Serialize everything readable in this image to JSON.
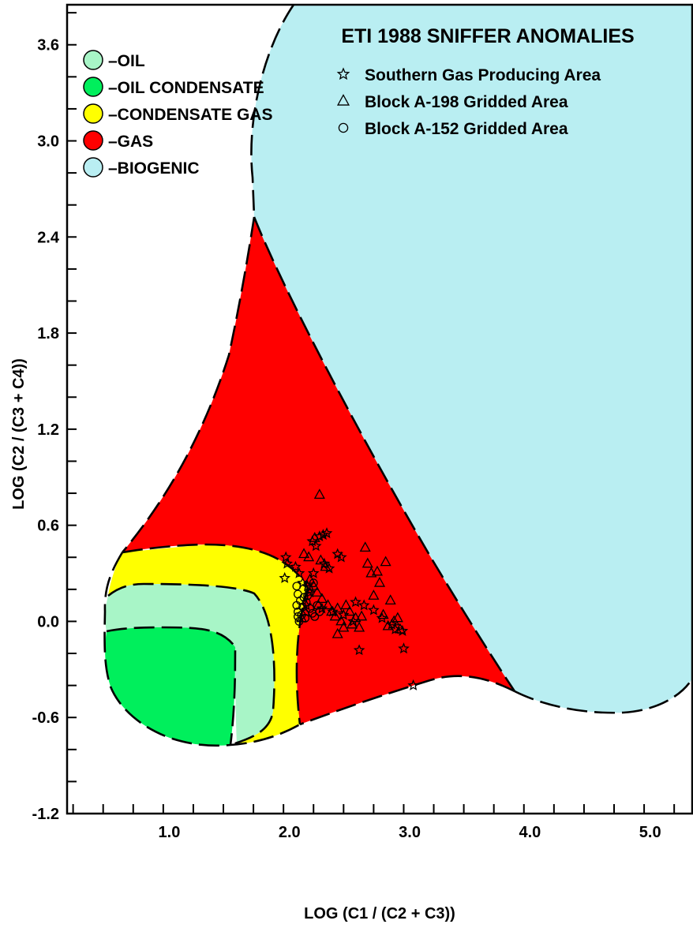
{
  "colors": {
    "oil": "#a8f5c7",
    "oil_condensate": "#00ef5c",
    "condensate_gas": "#ffff00",
    "gas": "#ff0000",
    "biogenic": "#b9eef2"
  },
  "chart_data": {
    "type": "scatter",
    "title": "ETI 1988 SNIFFER ANOMALIES",
    "xlabel": "LOG (C1 / (C2 + C3))",
    "ylabel": "LOG (C2 / (C3 + C4))",
    "xlim": [
      0.15,
      5.35
    ],
    "ylim": [
      -1.2,
      3.85
    ],
    "xticks": [
      "1.0",
      "2.0",
      "3.0",
      "4.0",
      "5.0"
    ],
    "yticks": [
      "-1.2",
      "-0.6",
      "0.0",
      "0.6",
      "1.2",
      "1.8",
      "2.4",
      "3.0",
      "3.6"
    ],
    "grid": false,
    "zones": [
      {
        "key": "oil",
        "label": "OIL"
      },
      {
        "key": "oil_condensate",
        "label": "OIL  CONDENSATE"
      },
      {
        "key": "condensate_gas",
        "label": "CONDENSATE  GAS"
      },
      {
        "key": "gas",
        "label": "GAS"
      },
      {
        "key": "biogenic",
        "label": "BIOGENIC"
      }
    ],
    "series": [
      {
        "name": "Southern Gas Producing Area",
        "marker": "star",
        "points": [
          [
            1.97,
            0.4
          ],
          [
            1.98,
            0.36
          ],
          [
            1.96,
            0.27
          ],
          [
            2.05,
            0.34
          ],
          [
            2.08,
            0.3
          ],
          [
            2.11,
            0.24
          ],
          [
            2.15,
            0.22
          ],
          [
            2.19,
            0.5
          ],
          [
            2.22,
            0.47
          ],
          [
            2.25,
            0.53
          ],
          [
            2.28,
            0.54
          ],
          [
            2.31,
            0.55
          ],
          [
            2.29,
            0.36
          ],
          [
            2.33,
            0.33
          ],
          [
            2.4,
            0.42
          ],
          [
            2.43,
            0.4
          ],
          [
            2.2,
            0.3
          ],
          [
            2.17,
            0.18
          ],
          [
            2.14,
            0.1
          ],
          [
            2.27,
            0.08
          ],
          [
            2.36,
            0.06
          ],
          [
            2.45,
            0.04
          ],
          [
            2.53,
            0.0
          ],
          [
            2.55,
            0.12
          ],
          [
            2.62,
            0.1
          ],
          [
            2.7,
            0.07
          ],
          [
            2.77,
            0.02
          ],
          [
            2.85,
            -0.02
          ],
          [
            2.88,
            -0.05
          ],
          [
            2.94,
            -0.06
          ],
          [
            2.58,
            -0.18
          ],
          [
            2.95,
            -0.17
          ],
          [
            3.03,
            -0.4
          ]
        ]
      },
      {
        "name": "Block A-198 Gridded Area",
        "marker": "triangle",
        "points": [
          [
            2.25,
            0.79
          ],
          [
            2.21,
            0.52
          ],
          [
            2.12,
            0.42
          ],
          [
            2.16,
            0.4
          ],
          [
            2.26,
            0.38
          ],
          [
            2.3,
            0.34
          ],
          [
            2.17,
            0.26
          ],
          [
            2.2,
            0.22
          ],
          [
            2.23,
            0.18
          ],
          [
            2.27,
            0.14
          ],
          [
            2.32,
            0.1
          ],
          [
            2.35,
            0.06
          ],
          [
            2.38,
            0.03
          ],
          [
            2.4,
            0.08
          ],
          [
            2.43,
            0.0
          ],
          [
            2.45,
            -0.04
          ],
          [
            2.47,
            0.1
          ],
          [
            2.5,
            0.06
          ],
          [
            2.52,
            -0.02
          ],
          [
            2.55,
            0.02
          ],
          [
            2.58,
            -0.04
          ],
          [
            2.6,
            0.03
          ],
          [
            2.63,
            0.46
          ],
          [
            2.65,
            0.36
          ],
          [
            2.68,
            0.3
          ],
          [
            2.7,
            0.16
          ],
          [
            2.73,
            0.31
          ],
          [
            2.75,
            0.24
          ],
          [
            2.78,
            0.04
          ],
          [
            2.8,
            0.37
          ],
          [
            2.82,
            -0.03
          ],
          [
            2.84,
            0.13
          ],
          [
            2.87,
            0.0
          ],
          [
            2.9,
            0.02
          ],
          [
            2.92,
            -0.05
          ],
          [
            2.4,
            -0.08
          ],
          [
            2.24,
            0.1
          ],
          [
            2.13,
            0.06
          ],
          [
            2.1,
            0.02
          ]
        ]
      },
      {
        "name": "Block A-152 Gridded Area",
        "marker": "circle",
        "points": [
          [
            2.06,
            0.22
          ],
          [
            2.07,
            0.17
          ],
          [
            2.09,
            0.13
          ],
          [
            2.11,
            0.09
          ],
          [
            2.07,
            0.06
          ],
          [
            2.1,
            0.04
          ],
          [
            2.13,
            0.02
          ],
          [
            2.08,
            0.0
          ],
          [
            2.06,
            0.1
          ],
          [
            2.12,
            0.15
          ],
          [
            2.14,
            0.12
          ],
          [
            2.17,
            0.08
          ],
          [
            2.19,
            0.05
          ],
          [
            2.21,
            0.03
          ],
          [
            2.16,
            0.2
          ],
          [
            2.2,
            0.24
          ],
          [
            2.23,
            0.1
          ],
          [
            2.25,
            0.06
          ],
          [
            2.07,
            0.03
          ],
          [
            2.15,
            0.16
          ]
        ]
      }
    ]
  }
}
